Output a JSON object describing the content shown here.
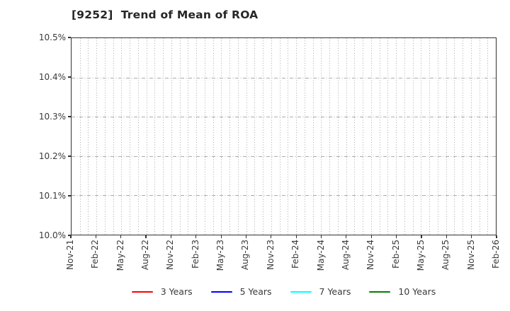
{
  "title": "[9252]  Trend of Mean of ROA",
  "chart_data": {
    "type": "line",
    "title": "[9252]  Trend of Mean of ROA",
    "xlabel": "",
    "ylabel": "",
    "x_tick_labels": [
      "Nov-21",
      "Feb-22",
      "May-22",
      "Aug-22",
      "Nov-22",
      "Feb-23",
      "May-23",
      "Aug-23",
      "Nov-23",
      "Feb-24",
      "May-24",
      "Aug-24",
      "Nov-24",
      "Feb-25",
      "May-25",
      "Aug-25",
      "Nov-25",
      "Feb-26"
    ],
    "months_per_tick": 3,
    "y_tick_labels": [
      "10.5%",
      "10.4%",
      "10.3%",
      "10.2%",
      "10.1%",
      "10.0%"
    ],
    "ylim": [
      10.0,
      10.5
    ],
    "y_tick_step": 0.1,
    "grid": true,
    "grid_style": {
      "vertical": "dotted-monthly",
      "horizontal": "dashed"
    },
    "legend_position": "bottom-center",
    "series": [
      {
        "name": "3 Years",
        "color": "#ff0000",
        "values": []
      },
      {
        "name": "5 Years",
        "color": "#0000ff",
        "values": []
      },
      {
        "name": "7 Years",
        "color": "#00ffff",
        "values": []
      },
      {
        "name": "10 Years",
        "color": "#008000",
        "values": []
      }
    ],
    "note": "no data series rendered within axes"
  },
  "colors": {
    "background": "#ffffff",
    "axis": "#333333",
    "grid": "#ababab",
    "text": "#3a3a3a",
    "title_text": "#262626"
  }
}
